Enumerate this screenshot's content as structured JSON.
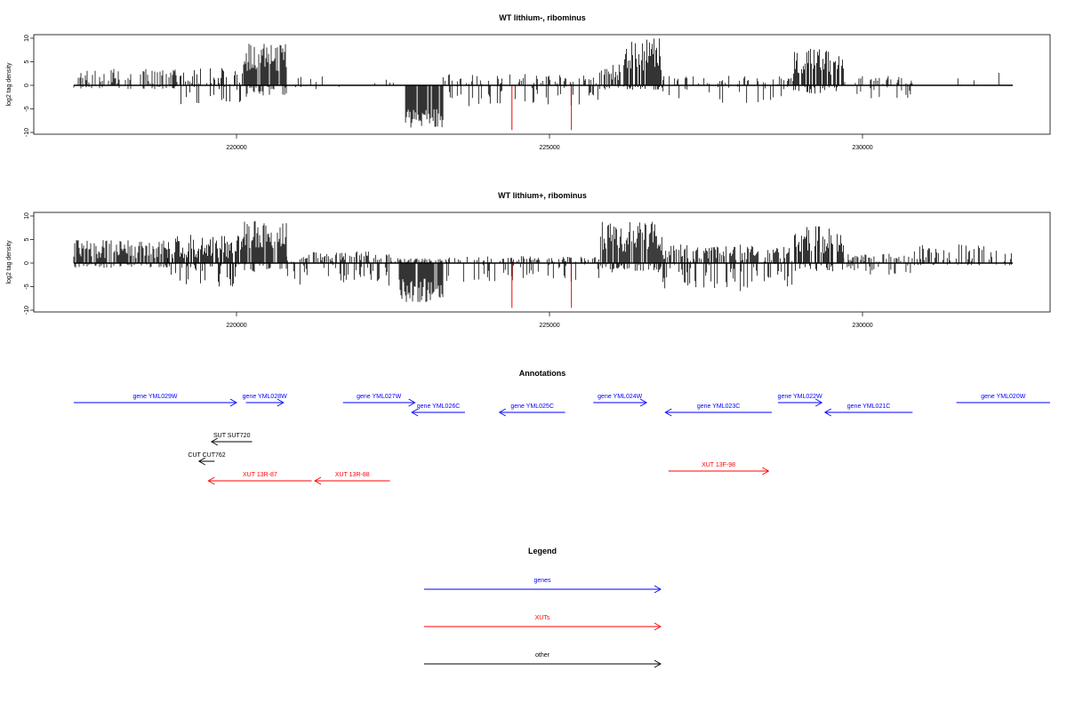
{
  "chart_data": [
    {
      "type": "bar",
      "title": "WT lithium-, ribominus",
      "ylabel": "log2 tag density",
      "xlabel": "",
      "xlim": [
        217400,
        232600
      ],
      "ylim": [
        -10,
        10
      ],
      "x_ticks": [
        220000,
        225000,
        230000
      ],
      "y_ticks": [
        10,
        5,
        0,
        -5,
        -10
      ],
      "grid": false,
      "density_regions": [
        {
          "start": 217400,
          "end": 219100,
          "plus": [
            0,
            3.5
          ],
          "minus": [
            0,
            0.8
          ],
          "density": 0.55
        },
        {
          "start": 219100,
          "end": 220100,
          "plus": [
            0,
            4
          ],
          "minus": [
            0,
            4
          ],
          "density": 0.6
        },
        {
          "start": 220100,
          "end": 220800,
          "plus": [
            3,
            9
          ],
          "minus": [
            0,
            2.5
          ],
          "density": 1.0
        },
        {
          "start": 220800,
          "end": 222700,
          "plus": [
            0,
            2
          ],
          "minus": [
            0,
            1
          ],
          "density": 0.12
        },
        {
          "start": 222700,
          "end": 223300,
          "plus": [
            0,
            0
          ],
          "minus": [
            5,
            9
          ],
          "density": 1.0
        },
        {
          "start": 223300,
          "end": 225800,
          "plus": [
            0,
            2.5
          ],
          "minus": [
            0,
            4.5
          ],
          "density": 0.35
        },
        {
          "start": 225800,
          "end": 226200,
          "plus": [
            1,
            4.5
          ],
          "minus": [
            0,
            1
          ],
          "density": 0.8
        },
        {
          "start": 226200,
          "end": 226800,
          "plus": [
            3,
            10
          ],
          "minus": [
            0,
            1
          ],
          "density": 0.9
        },
        {
          "start": 226800,
          "end": 228900,
          "plus": [
            0,
            2
          ],
          "minus": [
            0,
            4
          ],
          "density": 0.4
        },
        {
          "start": 228900,
          "end": 229700,
          "plus": [
            2,
            8
          ],
          "minus": [
            0,
            2
          ],
          "density": 0.9
        },
        {
          "start": 229700,
          "end": 230800,
          "plus": [
            0,
            2
          ],
          "minus": [
            0,
            3
          ],
          "density": 0.35
        },
        {
          "start": 230800,
          "end": 232400,
          "plus": [
            0,
            4
          ],
          "minus": [
            0,
            0.5
          ],
          "density": 0.12
        }
      ],
      "red_bars": [
        [
          224400,
          -9.5
        ],
        [
          225350,
          -9.5
        ]
      ]
    },
    {
      "type": "bar",
      "title": "WT lithium+, ribominus",
      "ylabel": "log2 tag density",
      "xlabel": "",
      "xlim": [
        217400,
        232600
      ],
      "ylim": [
        -10,
        10
      ],
      "x_ticks": [
        220000,
        225000,
        230000
      ],
      "y_ticks": [
        10,
        5,
        0,
        -5,
        -10
      ],
      "grid": false,
      "density_regions": [
        {
          "start": 217400,
          "end": 218900,
          "plus": [
            1,
            5
          ],
          "minus": [
            0,
            1
          ],
          "density": 0.9
        },
        {
          "start": 218900,
          "end": 220100,
          "plus": [
            1,
            6
          ],
          "minus": [
            0,
            5
          ],
          "density": 0.9
        },
        {
          "start": 220100,
          "end": 220800,
          "plus": [
            3,
            9
          ],
          "minus": [
            0,
            2
          ],
          "density": 1.0
        },
        {
          "start": 220800,
          "end": 222600,
          "plus": [
            0,
            2.5
          ],
          "minus": [
            0,
            5
          ],
          "density": 0.7
        },
        {
          "start": 222600,
          "end": 223300,
          "plus": [
            0,
            1
          ],
          "minus": [
            3,
            8.5
          ],
          "density": 1.0
        },
        {
          "start": 223300,
          "end": 225800,
          "plus": [
            0,
            1.5
          ],
          "minus": [
            0,
            4
          ],
          "density": 0.45
        },
        {
          "start": 225800,
          "end": 226800,
          "plus": [
            2,
            9
          ],
          "minus": [
            0,
            2
          ],
          "density": 0.95
        },
        {
          "start": 226800,
          "end": 228900,
          "plus": [
            0,
            4
          ],
          "minus": [
            0,
            6
          ],
          "density": 0.8
        },
        {
          "start": 228900,
          "end": 229700,
          "plus": [
            2,
            8
          ],
          "minus": [
            0,
            2
          ],
          "density": 0.9
        },
        {
          "start": 229700,
          "end": 230800,
          "plus": [
            0,
            2
          ],
          "minus": [
            0,
            3
          ],
          "density": 0.6
        },
        {
          "start": 230800,
          "end": 232400,
          "plus": [
            0,
            4
          ],
          "minus": [
            0,
            0.5
          ],
          "density": 0.45
        }
      ],
      "red_bars": [
        [
          224400,
          -9.5
        ],
        [
          225350,
          -9.5
        ]
      ]
    }
  ],
  "annotations": {
    "title": "Annotations",
    "features": [
      {
        "label": "gene YML029W",
        "start": 217400,
        "end": 220000,
        "strand": "+",
        "kind": "gene",
        "row": 0
      },
      {
        "label": "gene YML028W",
        "start": 220150,
        "end": 220750,
        "strand": "+",
        "kind": "gene",
        "row": 0
      },
      {
        "label": "gene YML027W",
        "start": 221700,
        "end": 222850,
        "strand": "+",
        "kind": "gene",
        "row": 0
      },
      {
        "label": "gene YML026C",
        "start": 222800,
        "end": 223650,
        "strand": "-",
        "kind": "gene",
        "row": 1
      },
      {
        "label": "gene YML025C",
        "start": 224200,
        "end": 225250,
        "strand": "-",
        "kind": "gene",
        "row": 1
      },
      {
        "label": "gene YML024W",
        "start": 225700,
        "end": 226550,
        "strand": "+",
        "kind": "gene",
        "row": 0
      },
      {
        "label": "gene YML023C",
        "start": 226850,
        "end": 228550,
        "strand": "-",
        "kind": "gene",
        "row": 1
      },
      {
        "label": "gene YML022W",
        "start": 228650,
        "end": 229350,
        "strand": "+",
        "kind": "gene",
        "row": 0
      },
      {
        "label": "gene YML021C",
        "start": 229400,
        "end": 230800,
        "strand": "-",
        "kind": "gene",
        "row": 1
      },
      {
        "label": "gene YML020W",
        "start": 231500,
        "end": 233300,
        "strand": "+",
        "kind": "gene",
        "row": 0
      },
      {
        "label": "SUT SUT720",
        "start": 219600,
        "end": 220250,
        "strand": "-",
        "kind": "other",
        "row": 4
      },
      {
        "label": "CUT CUT762",
        "start": 219400,
        "end": 219650,
        "strand": "-",
        "kind": "other",
        "row": 6
      },
      {
        "label": "XUT 13R-87",
        "start": 219550,
        "end": 221200,
        "strand": "-",
        "kind": "xut",
        "row": 8
      },
      {
        "label": "XUT 13R-88",
        "start": 221250,
        "end": 222450,
        "strand": "-",
        "kind": "xut",
        "row": 8
      },
      {
        "label": "XUT 13F-98",
        "start": 226900,
        "end": 228500,
        "strand": "+",
        "kind": "xut",
        "row": 7
      }
    ]
  },
  "legend": {
    "title": "Legend",
    "items": [
      {
        "label": "genes",
        "color": "#0000ff"
      },
      {
        "label": "XUTs",
        "color": "#ff0000"
      },
      {
        "label": "other",
        "color": "#000000"
      }
    ]
  },
  "colors": {
    "gene": "#0000ff",
    "xut": "#ff0000",
    "other": "#000000",
    "signal": "#000000",
    "red_bar": "#ff0000"
  }
}
